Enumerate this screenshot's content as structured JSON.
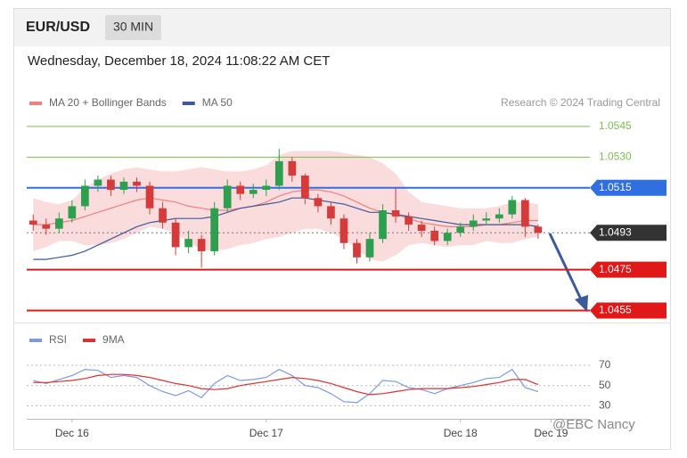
{
  "header": {
    "symbol": "EUR/USD",
    "interval": "30 MIN",
    "timestamp": "Wednesday, December 18, 2024 11:08:22 AM CET",
    "credit": "Research © 2024 Trading Central",
    "watermark": "@EBC Nancy"
  },
  "chart_data": [
    {
      "type": "candlestick",
      "ylim": [
        1.045,
        1.0548
      ],
      "xlim": [
        -0.5,
        43
      ],
      "up_color": "#2e9e4f",
      "down_color": "#d63b3b",
      "open": [
        1.0499,
        1.0497,
        1.0495,
        1.05,
        1.0506,
        1.0516,
        1.0519,
        1.0514,
        1.0518,
        1.0516,
        1.0505,
        1.0498,
        1.0486,
        1.049,
        1.0484,
        1.0505,
        1.0516,
        1.0512,
        1.0514,
        1.0516,
        1.0528,
        1.0521,
        1.051,
        1.0506,
        1.05,
        1.0488,
        1.0481,
        1.049,
        1.0504,
        1.0501,
        1.0497,
        1.0494,
        1.0489,
        1.0493,
        1.0496,
        1.0499,
        1.05,
        1.0502,
        1.0509,
        1.0496
      ],
      "high": [
        1.0502,
        1.05,
        1.0503,
        1.0509,
        1.0519,
        1.0521,
        1.0521,
        1.052,
        1.052,
        1.0518,
        1.0508,
        1.05,
        1.0494,
        1.0492,
        1.0508,
        1.0519,
        1.0518,
        1.0517,
        1.0519,
        1.0534,
        1.053,
        1.0522,
        1.0512,
        1.0508,
        1.0502,
        1.049,
        1.0493,
        1.0507,
        1.0515,
        1.0503,
        1.0499,
        1.0496,
        1.0495,
        1.0498,
        1.0502,
        1.0503,
        1.0505,
        1.0511,
        1.051,
        1.0497
      ],
      "low": [
        1.0494,
        1.0492,
        1.0493,
        1.0498,
        1.0504,
        1.0513,
        1.0511,
        1.0512,
        1.0513,
        1.0502,
        1.0495,
        1.0482,
        1.0483,
        1.0476,
        1.0482,
        1.0503,
        1.0509,
        1.051,
        1.0511,
        1.0514,
        1.0518,
        1.0507,
        1.0503,
        1.0497,
        1.0485,
        1.0478,
        1.0479,
        1.0488,
        1.0498,
        1.0494,
        1.0491,
        1.0487,
        1.0487,
        1.0491,
        1.0494,
        1.0497,
        1.0498,
        1.05,
        1.0491,
        1.049
      ],
      "close": [
        1.0497,
        1.0495,
        1.05,
        1.0506,
        1.0516,
        1.0519,
        1.0514,
        1.0518,
        1.0516,
        1.0505,
        1.0498,
        1.0486,
        1.049,
        1.0484,
        1.0505,
        1.0516,
        1.0512,
        1.0514,
        1.0516,
        1.0528,
        1.0521,
        1.051,
        1.0506,
        1.05,
        1.0488,
        1.0481,
        1.049,
        1.0504,
        1.0501,
        1.0497,
        1.0494,
        1.0489,
        1.0493,
        1.0496,
        1.0499,
        1.05,
        1.0502,
        1.0509,
        1.0496,
        1.0493
      ],
      "series": [
        {
          "name": "MA 20 + Bollinger Bands",
          "color": "#f08080",
          "band_color": "#fbdcdc",
          "values": [
            1.0497,
            1.0497,
            1.0498,
            1.0499,
            1.0501,
            1.0503,
            1.0505,
            1.0507,
            1.0509,
            1.051,
            1.0509,
            1.0508,
            1.0506,
            1.0505,
            1.0504,
            1.0504,
            1.0505,
            1.0506,
            1.0508,
            1.0511,
            1.0513,
            1.0514,
            1.0514,
            1.0513,
            1.0511,
            1.0508,
            1.0505,
            1.0503,
            1.0502,
            1.05,
            1.0498,
            1.0497,
            1.0496,
            1.0496,
            1.0496,
            1.0497,
            1.0497,
            1.0498,
            1.0499,
            1.0499
          ],
          "upper": [
            1.051,
            1.0508,
            1.0507,
            1.0509,
            1.0515,
            1.0519,
            1.0522,
            1.0524,
            1.0525,
            1.0524,
            1.0523,
            1.0523,
            1.0524,
            1.0525,
            1.0524,
            1.0523,
            1.0523,
            1.0524,
            1.0526,
            1.0531,
            1.0533,
            1.0533,
            1.0533,
            1.0533,
            1.0532,
            1.0531,
            1.053,
            1.0527,
            1.0522,
            1.0513,
            1.0508,
            1.0507,
            1.0506,
            1.0505,
            1.0505,
            1.0505,
            1.0506,
            1.0508,
            1.0508,
            1.0507
          ],
          "lower": [
            1.0484,
            1.0486,
            1.0489,
            1.0489,
            1.0487,
            1.0487,
            1.0488,
            1.049,
            1.0493,
            1.0496,
            1.0495,
            1.0493,
            1.0488,
            1.0485,
            1.0484,
            1.0485,
            1.0487,
            1.0488,
            1.049,
            1.0491,
            1.0493,
            1.0495,
            1.0495,
            1.0493,
            1.049,
            1.0485,
            1.048,
            1.0479,
            1.0482,
            1.0487,
            1.0488,
            1.0487,
            1.0486,
            1.0487,
            1.0487,
            1.0489,
            1.0488,
            1.0488,
            1.049,
            1.0491
          ]
        },
        {
          "name": "MA 50",
          "color": "#3a5a9a",
          "values": [
            1.048,
            1.048,
            1.0481,
            1.0482,
            1.0484,
            1.0487,
            1.049,
            1.0493,
            1.0496,
            1.0498,
            1.0499,
            1.05,
            1.05,
            1.05,
            1.0501,
            1.0503,
            1.0505,
            1.0506,
            1.0507,
            1.0508,
            1.051,
            1.051,
            1.0509,
            1.0508,
            1.0507,
            1.0505,
            1.0503,
            1.0503,
            1.0502,
            1.0501,
            1.05,
            1.0499,
            1.0498,
            1.0497,
            1.0497,
            1.0497,
            1.0497,
            1.0497,
            1.0497,
            1.0496
          ]
        }
      ],
      "levels": [
        {
          "value": 1.0545,
          "color": "#7cbf4a"
        },
        {
          "value": 1.053,
          "label": "1.0530",
          "color": "#7cbf4a"
        },
        {
          "value": 1.0515,
          "color": "#2f6fe0",
          "boxed": true
        },
        {
          "value": 1.0493,
          "color": "#333333",
          "boxed": true,
          "dashed": true
        },
        {
          "value": 1.0475,
          "color": "#e01818",
          "boxed": true
        },
        {
          "value": 1.0455,
          "color": "#e01818",
          "boxed": true
        }
      ]
    },
    {
      "type": "line",
      "ylim": [
        25,
        78
      ],
      "yticks": [
        30,
        50,
        70
      ],
      "xlim": [
        -0.5,
        43
      ],
      "xticks": [
        {
          "value": 3,
          "label": "Dec 16"
        },
        {
          "value": 18,
          "label": "Dec 17"
        },
        {
          "value": 33,
          "label": "Dec 18"
        },
        {
          "value": 40,
          "label": "Dec 19"
        }
      ],
      "series": [
        {
          "name": "RSI",
          "color": "#7b9be0",
          "values": [
            55,
            52,
            56,
            60,
            66,
            65,
            58,
            60,
            58,
            50,
            44,
            40,
            45,
            38,
            52,
            60,
            55,
            56,
            58,
            66,
            60,
            50,
            48,
            42,
            34,
            33,
            42,
            55,
            54,
            48,
            46,
            42,
            47,
            50,
            53,
            57,
            58,
            66,
            48,
            44
          ]
        },
        {
          "name": "9MA",
          "color": "#e03030",
          "values": [
            53,
            53,
            54,
            55,
            57,
            60,
            61,
            61,
            60,
            58,
            55,
            52,
            50,
            47,
            46,
            47,
            50,
            52,
            54,
            56,
            58,
            57,
            55,
            52,
            48,
            44,
            41,
            42,
            44,
            46,
            47,
            47,
            47,
            48,
            49,
            51,
            53,
            56,
            56,
            51
          ]
        }
      ]
    }
  ]
}
